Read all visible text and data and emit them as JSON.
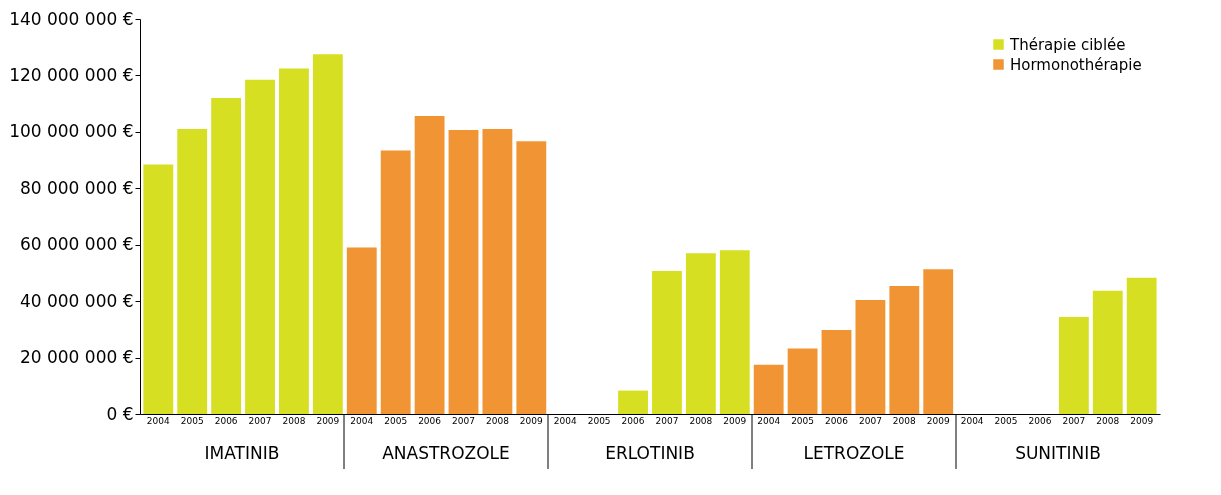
{
  "chart_data": {
    "type": "bar",
    "categories": [
      "2004",
      "2005",
      "2006",
      "2007",
      "2008",
      "2009",
      "2004",
      "2005",
      "2006",
      "2007",
      "2008",
      "2009",
      "2004",
      "2005",
      "2006",
      "2007",
      "2008",
      "2009",
      "2004",
      "2005",
      "2006",
      "2007",
      "2008",
      "2009",
      "2004",
      "2005",
      "2006",
      "2007",
      "2008",
      "2009"
    ],
    "series": [
      {
        "name": "Thérapie ciblée",
        "color": "#d7df23",
        "values": [
          88400000,
          101000000,
          112000000,
          118500000,
          122500000,
          127500000,
          null,
          null,
          null,
          null,
          null,
          null,
          null,
          null,
          8300000,
          50700000,
          57000000,
          58000000,
          null,
          null,
          null,
          null,
          null,
          null,
          null,
          null,
          null,
          34400000,
          43700000,
          48300000
        ]
      },
      {
        "name": "Hormonothérapie",
        "color": "#f19433",
        "values": [
          null,
          null,
          null,
          null,
          null,
          null,
          59000000,
          93400000,
          105600000,
          100700000,
          101000000,
          96700000,
          null,
          null,
          null,
          null,
          null,
          null,
          17500000,
          23200000,
          29800000,
          40400000,
          45400000,
          51300000,
          null,
          null,
          null,
          null,
          null,
          null
        ]
      }
    ],
    "ylim": [
      0,
      140000000
    ],
    "yticks": [
      {
        "value": 0,
        "label": "0 €"
      },
      {
        "value": 20000000,
        "label": "20 000 000 €"
      },
      {
        "value": 40000000,
        "label": "40 000 000 €"
      },
      {
        "value": 60000000,
        "label": "60 000 000 €"
      },
      {
        "value": 80000000,
        "label": "80 000 000 €"
      },
      {
        "value": 100000000,
        "label": "100 000 000 €"
      },
      {
        "value": 120000000,
        "label": "120 000 000 €"
      },
      {
        "value": 140000000,
        "label": "140 000 000 €"
      }
    ],
    "annotations": [
      "IMATINIB",
      "ANASTROZOLE",
      "ERLOTINIB",
      "LETROZOLE",
      "SUNITINIB"
    ],
    "grid": false,
    "legend": "top right"
  }
}
